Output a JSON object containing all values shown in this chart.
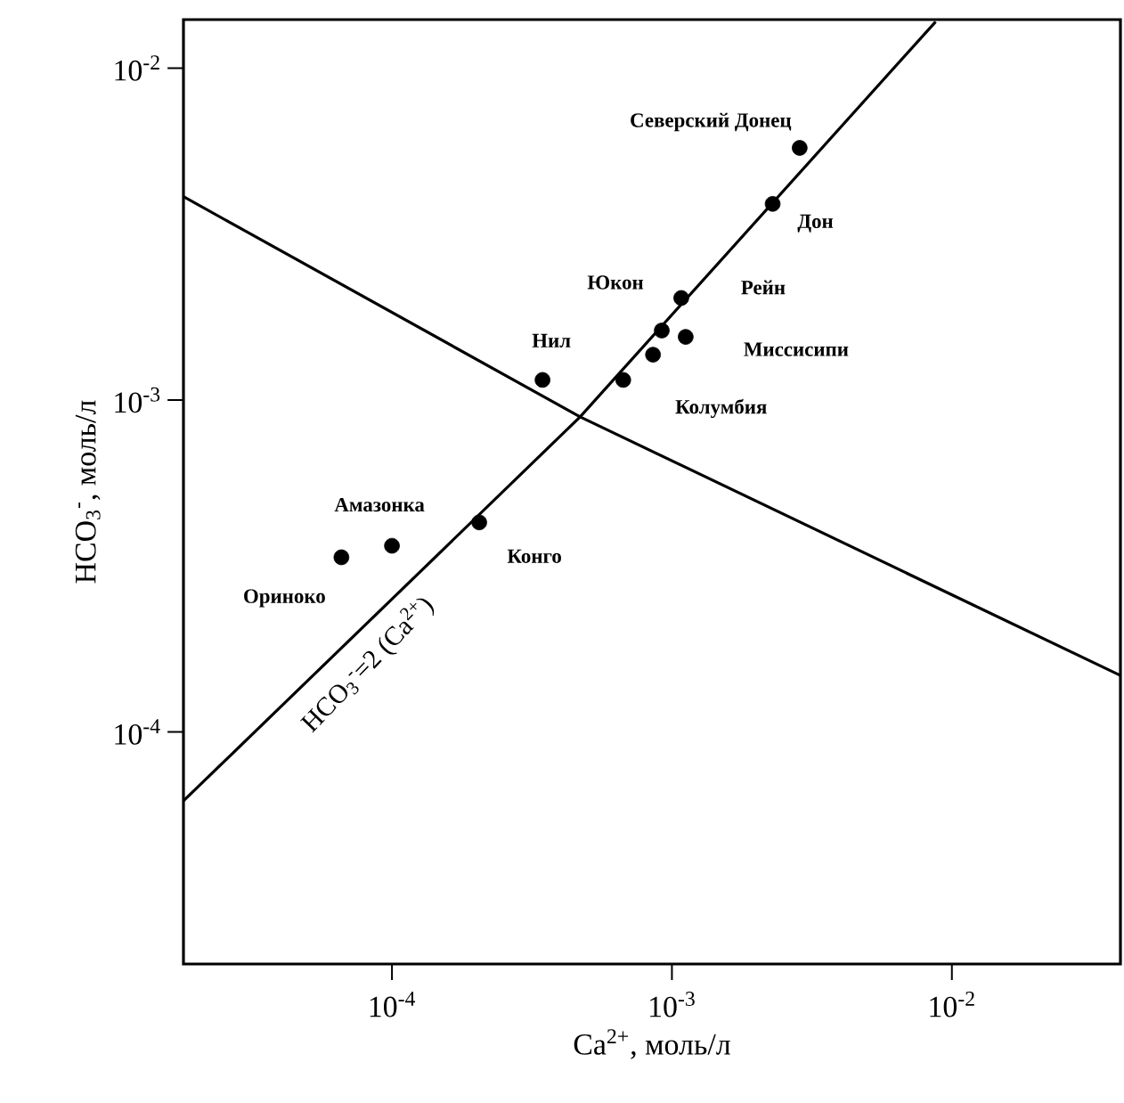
{
  "chart_data": {
    "type": "scatter",
    "xlabel": "Ca$^{2+}$, моль/л",
    "ylabel": "HCO$_{3}$$^{-}$, моль/л",
    "log": "xy",
    "xlim": [
      1.8e-05,
      0.04
    ],
    "ylim": [
      2e-05,
      0.014
    ],
    "xticks": [
      {
        "value": 0.0001,
        "label": "10$^{-4}$"
      },
      {
        "value": 0.001,
        "label": "10$^{-3}$"
      },
      {
        "value": 0.01,
        "label": "10$^{-2}$"
      }
    ],
    "yticks": [
      {
        "value": 0.0001,
        "label": "10$^{-4}$"
      },
      {
        "value": 0.001,
        "label": "10$^{-3}$"
      },
      {
        "value": 0.01,
        "label": "10$^{-2}$"
      }
    ],
    "series": [
      {
        "type": "scatter",
        "color": "#000000",
        "marker": "circle",
        "x": [
          0.00286,
          0.00229,
          0.00108,
          0.00092,
          0.00112,
          0.000856,
          0.00067,
          0.000345,
          0.000205,
          0.0001,
          6.6e-05
        ],
        "values": [
          0.00575,
          0.0039,
          0.00203,
          0.00162,
          0.00155,
          0.00137,
          0.00115,
          0.00115,
          0.000428,
          0.000364,
          0.000336
        ]
      },
      {
        "type": "line",
        "name": "HCO$_{3}$$^{-}$=2 (Ca$^{2+}$)",
        "color": "#000000",
        "marker": "none",
        "x": [
          1.8e-05,
          0.00047,
          0.00875
        ],
        "values": [
          6.2e-05,
          0.00089,
          0.0138
        ]
      },
      {
        "type": "line",
        "color": "#000000",
        "marker": "none",
        "x": [
          1.8e-05,
          0.00047,
          0.04
        ],
        "values": [
          0.0041,
          0.00089,
          0.000148
        ]
      }
    ],
    "annotations": [
      {
        "text": "Северский Донец",
        "x": 0.00286,
        "y": 0.00575
      },
      {
        "text": "Дон",
        "x": 0.00229,
        "y": 0.0039
      },
      {
        "text": "Юкон",
        "x": 0.00092,
        "y": 0.00162
      },
      {
        "text": "Рейн",
        "x": 0.00108,
        "y": 0.00203
      },
      {
        "text": "Миссисипи",
        "x": 0.00112,
        "y": 0.00155
      },
      {
        "text": "Колумбия",
        "x": 0.00067,
        "y": 0.00115
      },
      {
        "text": "Нил",
        "x": 0.000345,
        "y": 0.00115
      },
      {
        "text": "Амазонка",
        "x": 0.0001,
        "y": 0.000364
      },
      {
        "text": "Конго",
        "x": 0.000205,
        "y": 0.000428
      },
      {
        "text": "Ориноко",
        "x": 6.6e-05,
        "y": 0.000336
      }
    ]
  }
}
